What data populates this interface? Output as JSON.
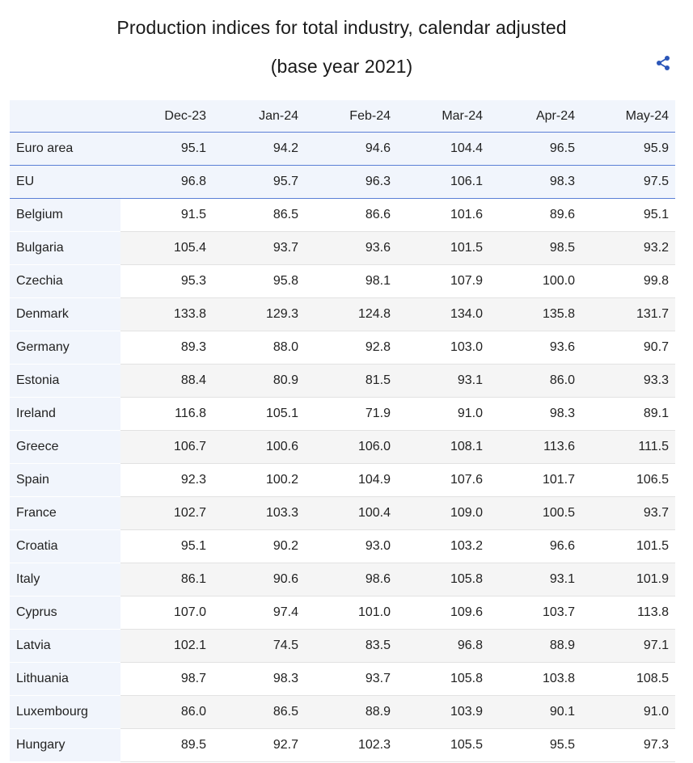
{
  "title_line1": "Production indices for total industry, calendar adjusted",
  "title_line2": "(base year 2021)",
  "share_icon": "share-icon",
  "chart_data": {
    "type": "table",
    "title": "Production indices for total industry, calendar adjusted (base year 2021)",
    "columns": [
      "Dec-23",
      "Jan-24",
      "Feb-24",
      "Mar-24",
      "Apr-24",
      "May-24"
    ],
    "rows": [
      {
        "label": "Euro area",
        "aggregate": true,
        "values": [
          "95.1",
          "94.2",
          "94.6",
          "104.4",
          "96.5",
          "95.9"
        ]
      },
      {
        "label": "EU",
        "aggregate": true,
        "values": [
          "96.8",
          "95.7",
          "96.3",
          "106.1",
          "98.3",
          "97.5"
        ]
      },
      {
        "label": "Belgium",
        "values": [
          "91.5",
          "86.5",
          "86.6",
          "101.6",
          "89.6",
          "95.1"
        ]
      },
      {
        "label": "Bulgaria",
        "values": [
          "105.4",
          "93.7",
          "93.6",
          "101.5",
          "98.5",
          "93.2"
        ]
      },
      {
        "label": "Czechia",
        "values": [
          "95.3",
          "95.8",
          "98.1",
          "107.9",
          "100.0",
          "99.8"
        ]
      },
      {
        "label": "Denmark",
        "values": [
          "133.8",
          "129.3",
          "124.8",
          "134.0",
          "135.8",
          "131.7"
        ]
      },
      {
        "label": "Germany",
        "values": [
          "89.3",
          "88.0",
          "92.8",
          "103.0",
          "93.6",
          "90.7"
        ]
      },
      {
        "label": "Estonia",
        "values": [
          "88.4",
          "80.9",
          "81.5",
          "93.1",
          "86.0",
          "93.3"
        ]
      },
      {
        "label": "Ireland",
        "values": [
          "116.8",
          "105.1",
          "71.9",
          "91.0",
          "98.3",
          "89.1"
        ]
      },
      {
        "label": "Greece",
        "values": [
          "106.7",
          "100.6",
          "106.0",
          "108.1",
          "113.6",
          "111.5"
        ]
      },
      {
        "label": "Spain",
        "values": [
          "92.3",
          "100.2",
          "104.9",
          "107.6",
          "101.7",
          "106.5"
        ]
      },
      {
        "label": "France",
        "values": [
          "102.7",
          "103.3",
          "100.4",
          "109.0",
          "100.5",
          "93.7"
        ]
      },
      {
        "label": "Croatia",
        "values": [
          "95.1",
          "90.2",
          "93.0",
          "103.2",
          "96.6",
          "101.5"
        ]
      },
      {
        "label": "Italy",
        "values": [
          "86.1",
          "90.6",
          "98.6",
          "105.8",
          "93.1",
          "101.9"
        ]
      },
      {
        "label": "Cyprus",
        "values": [
          "107.0",
          "97.4",
          "101.0",
          "109.6",
          "103.7",
          "113.8"
        ]
      },
      {
        "label": "Latvia",
        "values": [
          "102.1",
          "74.5",
          "83.5",
          "96.8",
          "88.9",
          "97.1"
        ]
      },
      {
        "label": "Lithuania",
        "values": [
          "98.7",
          "98.3",
          "93.7",
          "105.8",
          "103.8",
          "108.5"
        ]
      },
      {
        "label": "Luxembourg",
        "values": [
          "86.0",
          "86.5",
          "88.9",
          "103.9",
          "90.1",
          "91.0"
        ]
      },
      {
        "label": "Hungary",
        "values": [
          "89.5",
          "92.7",
          "102.3",
          "105.5",
          "95.5",
          "97.3"
        ]
      }
    ]
  }
}
